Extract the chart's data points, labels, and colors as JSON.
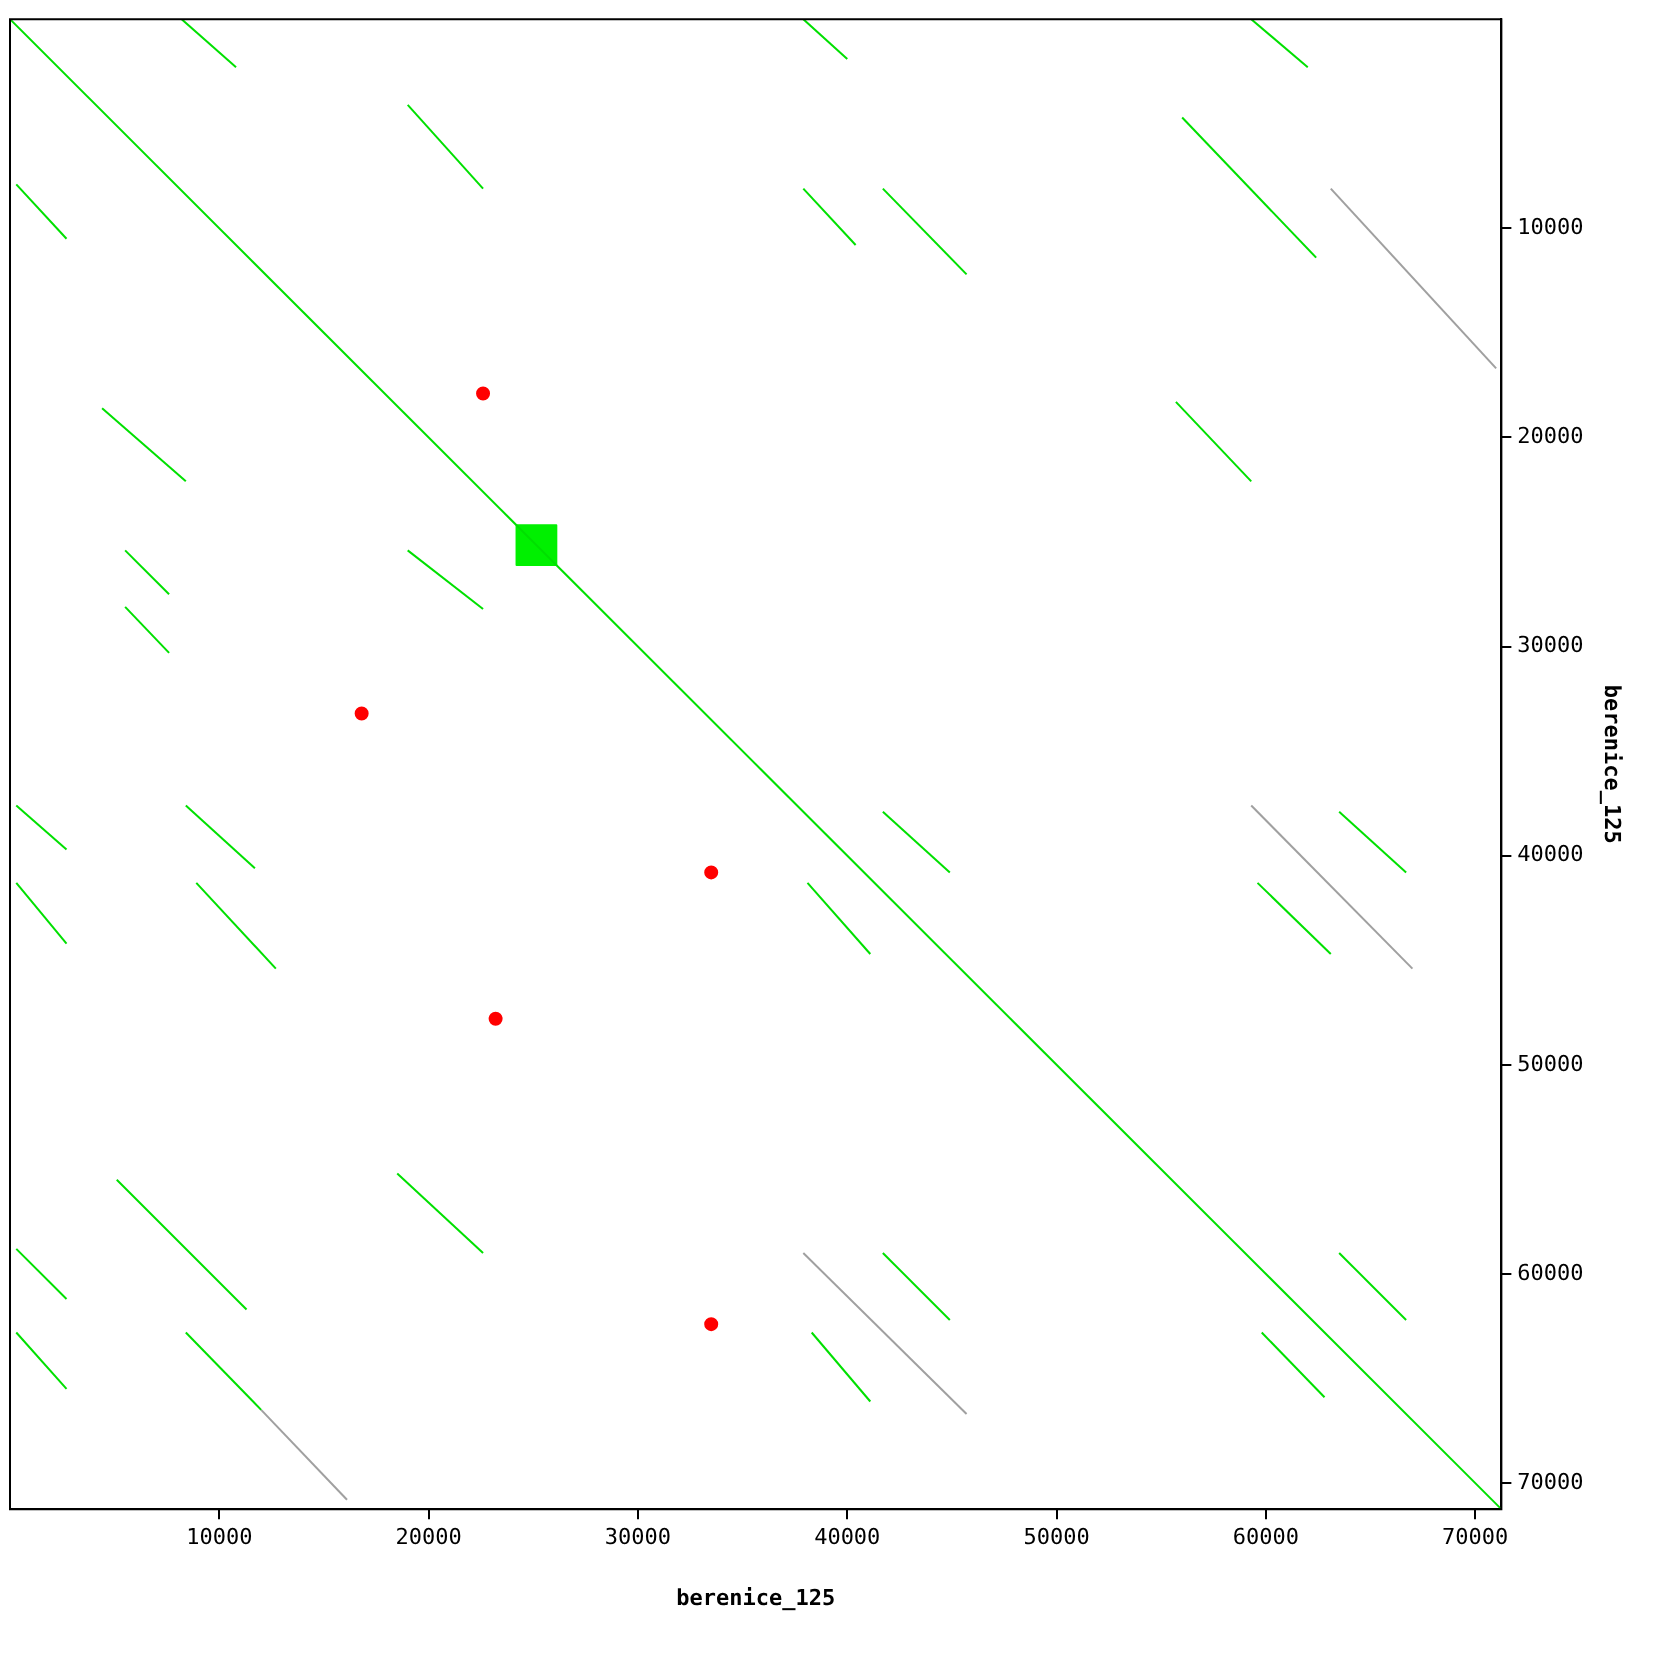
{
  "chart_data": {
    "type": "line",
    "xlabel": "berenice_125",
    "ylabel": "berenice_125",
    "xlim": [
      0,
      71250
    ],
    "ylim": [
      71250,
      0
    ],
    "xticks": [
      10000,
      20000,
      30000,
      40000,
      50000,
      60000,
      70000
    ],
    "yticks": [
      10000,
      20000,
      30000,
      40000,
      50000,
      60000,
      70000
    ],
    "grid": false,
    "legend": false,
    "marker": "none",
    "line_style": "solid",
    "series": [
      {
        "color": "#00e000",
        "x": [
          0,
          71200
        ],
        "values": [
          0,
          71200
        ]
      },
      {
        "color": "#00e000",
        "x": [
          8200,
          10800
        ],
        "values": [
          0,
          2300
        ]
      },
      {
        "color": "#00e000",
        "x": [
          300,
          2700
        ],
        "values": [
          7900,
          10500
        ]
      },
      {
        "color": "#00e000",
        "x": [
          19000,
          22600
        ],
        "values": [
          4100,
          8100
        ]
      },
      {
        "color": "#00e000",
        "x": [
          37900,
          40000
        ],
        "values": [
          0,
          1900
        ]
      },
      {
        "color": "#00e000",
        "x": [
          59300,
          62000
        ],
        "values": [
          0,
          2300
        ]
      },
      {
        "color": "#00e000",
        "x": [
          56000,
          62400
        ],
        "values": [
          4700,
          11400
        ]
      },
      {
        "color": "#00e000",
        "x": [
          37900,
          40400
        ],
        "values": [
          8100,
          10800
        ]
      },
      {
        "color": "#00e000",
        "x": [
          41700,
          45700
        ],
        "values": [
          8100,
          12200
        ]
      },
      {
        "color": "#00e000",
        "x": [
          4400,
          8400
        ],
        "values": [
          18600,
          22100
        ]
      },
      {
        "color": "#00e000",
        "x": [
          55700,
          59300
        ],
        "values": [
          18300,
          22100
        ]
      },
      {
        "color": "#00e000",
        "x": [
          300,
          2700
        ],
        "values": [
          37600,
          39700
        ]
      },
      {
        "color": "#00e000",
        "x": [
          8400,
          11700
        ],
        "values": [
          37600,
          40600
        ]
      },
      {
        "color": "#00e000",
        "x": [
          41700,
          44900
        ],
        "values": [
          37900,
          40800
        ]
      },
      {
        "color": "#00e000",
        "x": [
          38100,
          41100
        ],
        "values": [
          41300,
          44700
        ]
      },
      {
        "color": "#00e000",
        "x": [
          63500,
          66700
        ],
        "values": [
          37900,
          40800
        ]
      },
      {
        "color": "#00e000",
        "x": [
          8900,
          12700
        ],
        "values": [
          41300,
          45400
        ]
      },
      {
        "color": "#00e000",
        "x": [
          300,
          2700
        ],
        "values": [
          41300,
          44200
        ]
      },
      {
        "color": "#00e000",
        "x": [
          59600,
          63100
        ],
        "values": [
          41300,
          44700
        ]
      },
      {
        "color": "#00e000",
        "x": [
          300,
          2700
        ],
        "values": [
          58800,
          61200
        ]
      },
      {
        "color": "#00e000",
        "x": [
          5100,
          11300
        ],
        "values": [
          55500,
          61700
        ]
      },
      {
        "color": "#00e000",
        "x": [
          18500,
          22600
        ],
        "values": [
          55200,
          59000
        ]
      },
      {
        "color": "#00e000",
        "x": [
          41700,
          44900
        ],
        "values": [
          59000,
          62200
        ]
      },
      {
        "color": "#00e000",
        "x": [
          38300,
          41100
        ],
        "values": [
          62800,
          66100
        ]
      },
      {
        "color": "#00e000",
        "x": [
          63500,
          66700
        ],
        "values": [
          59000,
          62200
        ]
      },
      {
        "color": "#00e000",
        "x": [
          59800,
          62800
        ],
        "values": [
          62800,
          65900
        ]
      },
      {
        "color": "#00e000",
        "x": [
          300,
          2700
        ],
        "values": [
          62800,
          65500
        ]
      },
      {
        "color": "#00e000",
        "x": [
          8400,
          12000
        ],
        "values": [
          62800,
          66500
        ]
      },
      {
        "color": "#00e000",
        "x": [
          19000,
          22600
        ],
        "values": [
          25400,
          28200
        ]
      },
      {
        "color": "#00e000",
        "x": [
          5500,
          7600
        ],
        "values": [
          25400,
          27500
        ]
      },
      {
        "color": "#00e000",
        "x": [
          5500,
          7600
        ],
        "values": [
          28100,
          30300
        ]
      },
      {
        "color": "#a0a0a0",
        "x": [
          63100,
          71000
        ],
        "values": [
          8100,
          16700
        ]
      },
      {
        "color": "#a0a0a0",
        "x": [
          59300,
          67000
        ],
        "values": [
          37600,
          45400
        ]
      },
      {
        "color": "#a0a0a0",
        "x": [
          37900,
          45700
        ],
        "values": [
          59000,
          66700
        ]
      },
      {
        "color": "#a0a0a0",
        "x": [
          12000,
          16100
        ],
        "values": [
          66500,
          70800
        ]
      },
      {
        "type": "area",
        "color": "#00f000",
        "x": [
          24200,
          26100,
          26100,
          24200,
          24200
        ],
        "values": [
          24200,
          24200,
          26100,
          26100,
          24200
        ]
      },
      {
        "type": "scatter",
        "color": "#ff0000",
        "marker": "circle",
        "x": [
          22600,
          16800,
          33500,
          23200,
          33500
        ],
        "values": [
          17900,
          33200,
          40800,
          47800,
          62400
        ]
      }
    ]
  }
}
